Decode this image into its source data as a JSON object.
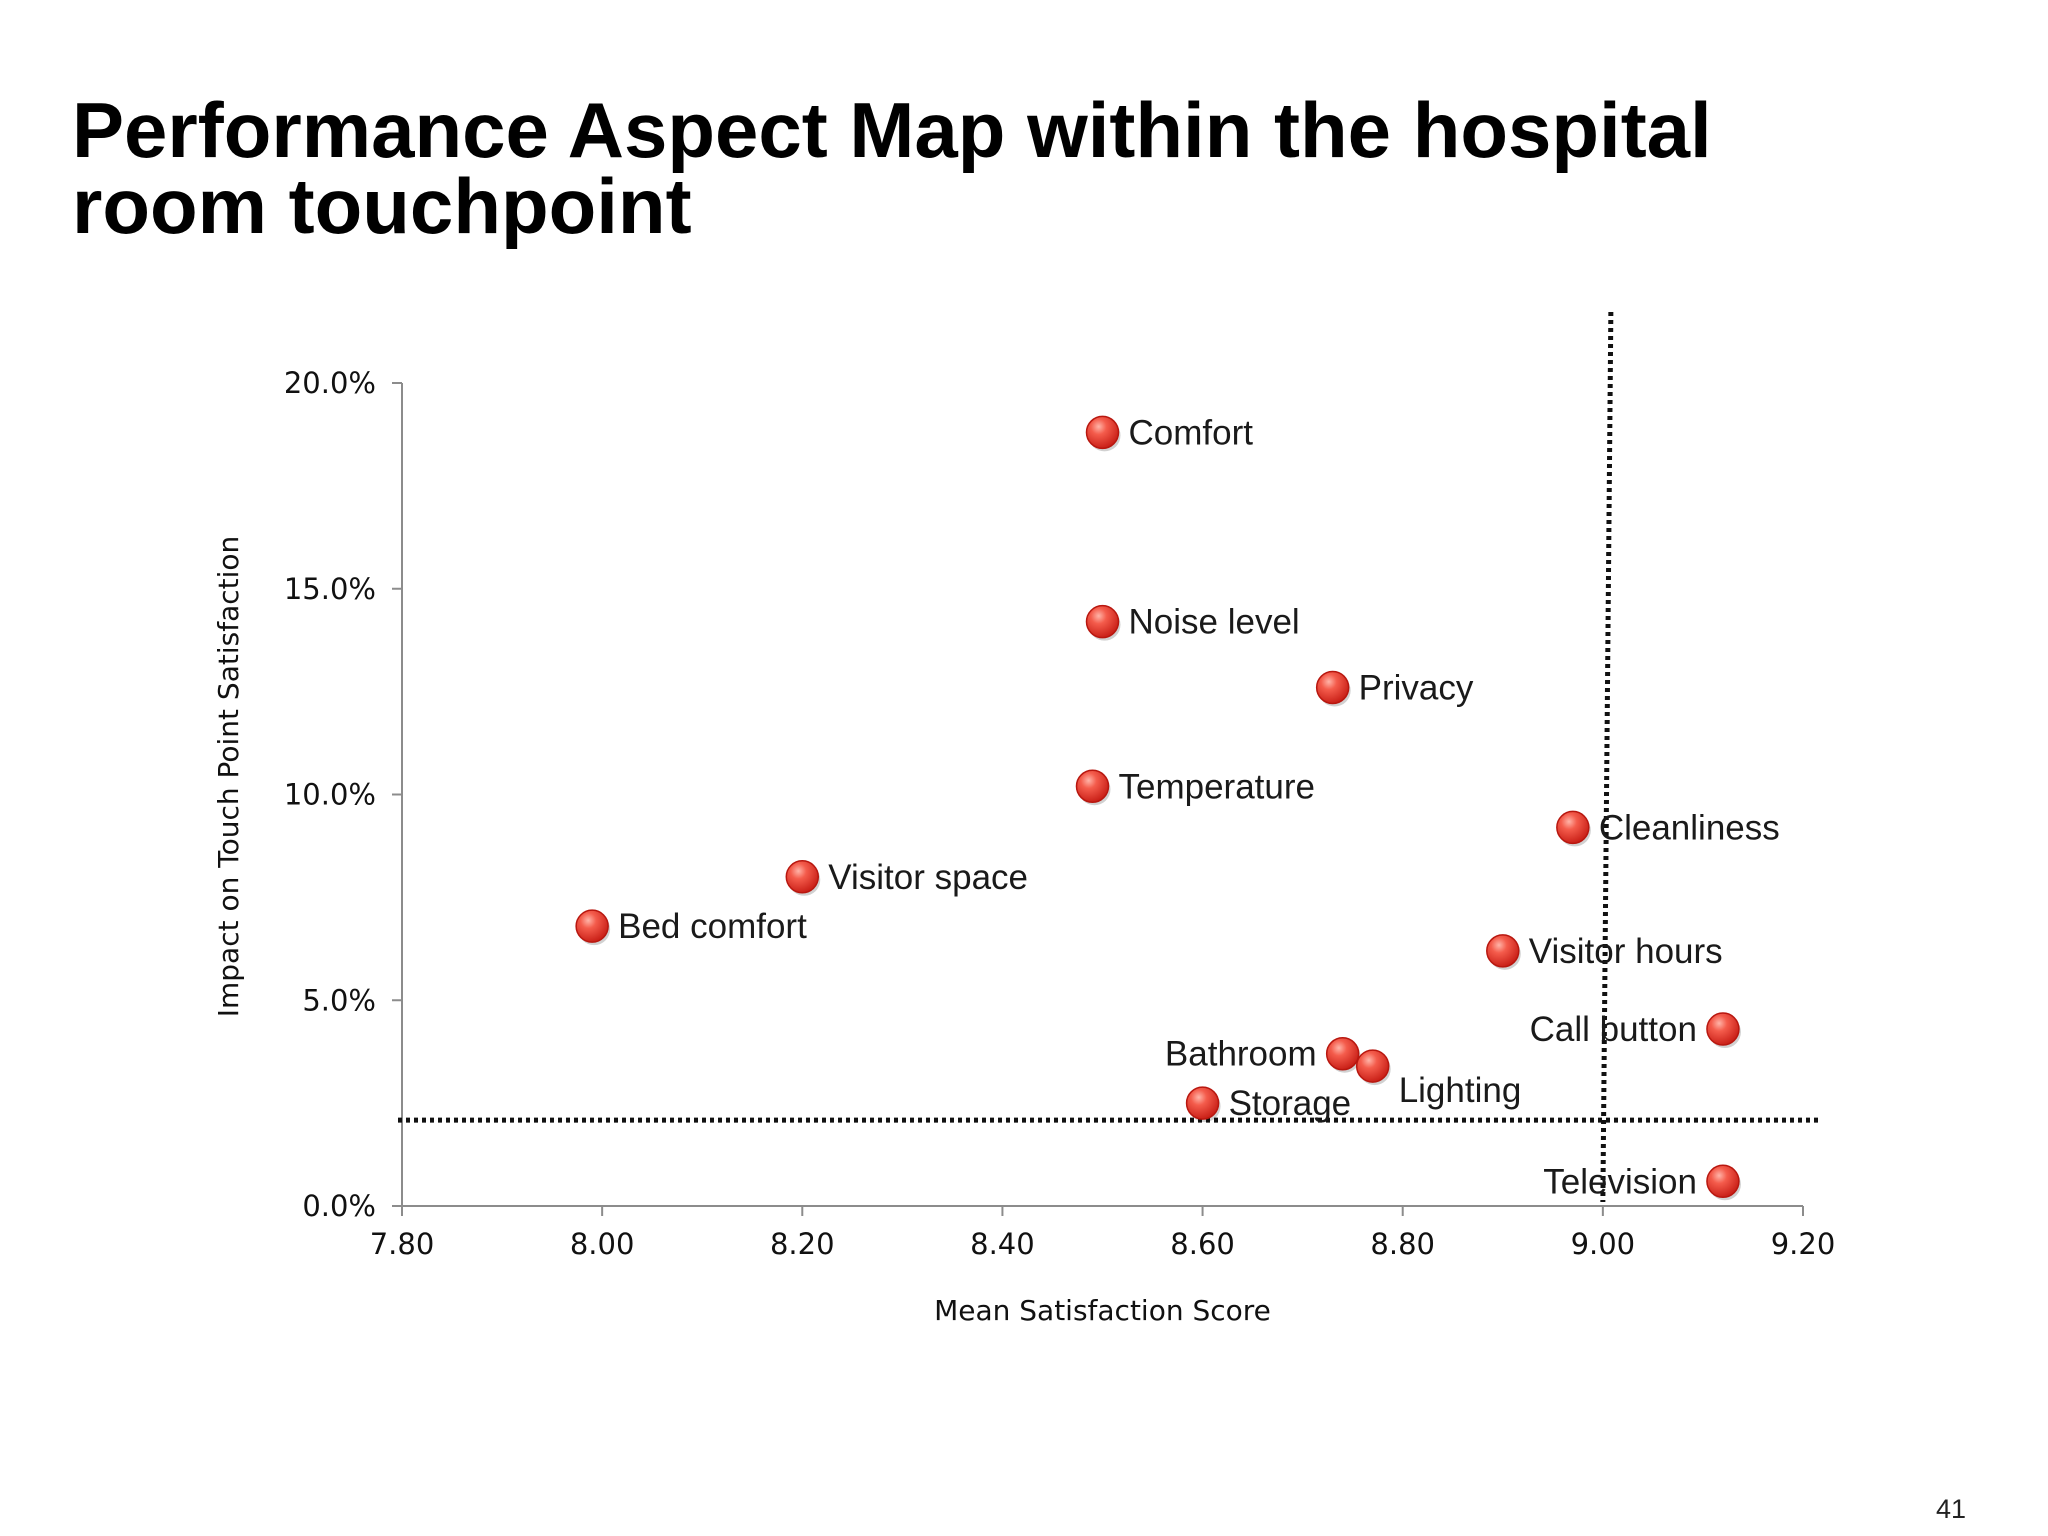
{
  "slide": {
    "title": "Performance Aspect Map within the hospital\nroom touchpoint",
    "page_number": "41"
  },
  "colors": {
    "marker": "#e8352b",
    "marker_highlight": "#ff9a8a",
    "axis": "#8c8c8c",
    "threshold_line": "#111111"
  },
  "chart_data": {
    "type": "scatter",
    "title": "",
    "xlabel": "Mean Satisfaction Score",
    "ylabel": "Impact on Touch Point Satisfaction",
    "xlim": [
      7.8,
      9.2
    ],
    "ylim": [
      0,
      0.2
    ],
    "x_ticks": [
      "7.80",
      "8.00",
      "8.20",
      "8.40",
      "8.60",
      "8.80",
      "9.00",
      "9.20"
    ],
    "y_ticks": [
      "0.0%",
      "5.0%",
      "10.0%",
      "15.0%",
      "20.0%"
    ],
    "grid": false,
    "thresholds": {
      "x": 9.0,
      "y": 0.025
    },
    "points": [
      {
        "label": "Comfort",
        "x": 8.5,
        "y": 0.188,
        "label_pos": "right"
      },
      {
        "label": "Noise level",
        "x": 8.5,
        "y": 0.142,
        "label_pos": "right"
      },
      {
        "label": "Privacy",
        "x": 8.73,
        "y": 0.126,
        "label_pos": "right"
      },
      {
        "label": "Temperature",
        "x": 8.49,
        "y": 0.102,
        "label_pos": "right"
      },
      {
        "label": "Cleanliness",
        "x": 8.97,
        "y": 0.092,
        "label_pos": "right"
      },
      {
        "label": "Visitor space",
        "x": 8.2,
        "y": 0.08,
        "label_pos": "right"
      },
      {
        "label": "Bed comfort",
        "x": 7.99,
        "y": 0.068,
        "label_pos": "right"
      },
      {
        "label": "Visitor hours",
        "x": 8.9,
        "y": 0.062,
        "label_pos": "right"
      },
      {
        "label": "Call button",
        "x": 9.12,
        "y": 0.043,
        "label_pos": "left"
      },
      {
        "label": "Bathroom",
        "x": 8.74,
        "y": 0.037,
        "label_pos": "left"
      },
      {
        "label": "Lighting",
        "x": 8.77,
        "y": 0.034,
        "label_pos": "below-right"
      },
      {
        "label": "Storage",
        "x": 8.6,
        "y": 0.025,
        "label_pos": "right"
      },
      {
        "label": "Television",
        "x": 9.12,
        "y": 0.006,
        "label_pos": "left"
      }
    ]
  }
}
